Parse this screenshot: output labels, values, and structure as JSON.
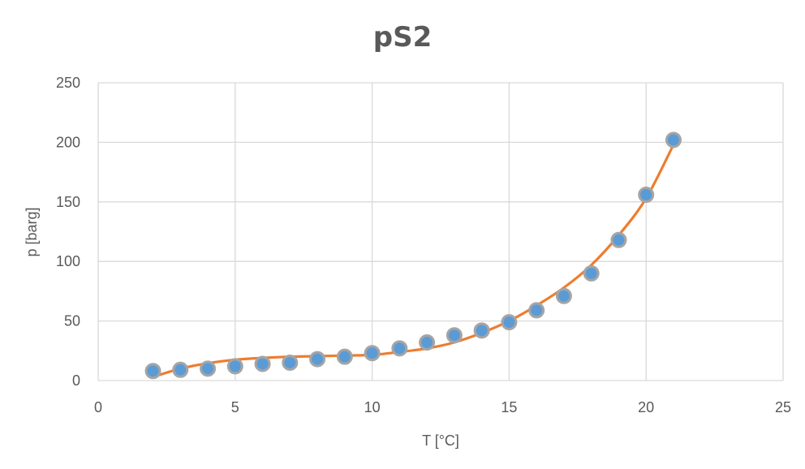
{
  "chart_data": {
    "type": "scatter",
    "title": "pS2",
    "xlabel": "T [°C]",
    "ylabel": "p [barg]",
    "xlim": [
      0,
      25
    ],
    "ylim": [
      0,
      250
    ],
    "xticks": [
      "0",
      "5",
      "10",
      "15",
      "20",
      "25"
    ],
    "yticks": [
      "0",
      "50",
      "100",
      "150",
      "200",
      "250"
    ],
    "grid": true,
    "legend": "none",
    "colors": {
      "marker": "#5b9bd5",
      "marker_edge": "#a5a5a5",
      "trendline": "#ed7d31",
      "grid": "#d9d9d9"
    },
    "series": [
      {
        "x": [
          2,
          3,
          4,
          5,
          6,
          7,
          8,
          9,
          10,
          11,
          12,
          13,
          14,
          15,
          16,
          17,
          18,
          19,
          20,
          21
        ],
        "y": [
          8,
          9,
          10,
          12,
          14,
          15,
          18,
          20,
          23,
          27,
          32,
          38,
          42,
          49,
          59,
          71,
          90,
          118,
          156,
          202
        ]
      }
    ],
    "trendline": {
      "x": [
        2,
        3,
        4,
        5,
        6,
        7,
        8,
        9,
        10,
        11,
        12,
        13,
        14,
        15,
        16,
        17,
        18,
        19,
        20,
        21
      ],
      "y": [
        3,
        10,
        14.5,
        17.5,
        19,
        20,
        20.5,
        21,
        21.5,
        24,
        27,
        32,
        40,
        50,
        63,
        78,
        97,
        122,
        153,
        198
      ]
    }
  }
}
